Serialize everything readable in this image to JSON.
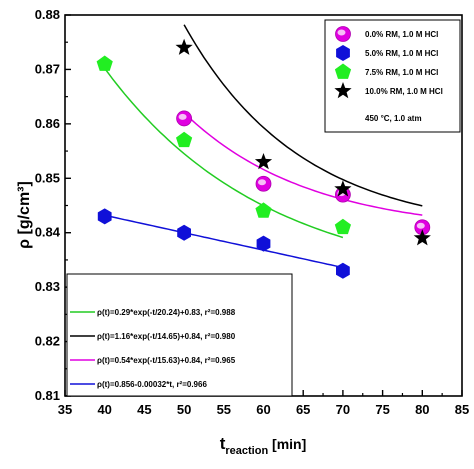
{
  "chart_data": {
    "type": "scatter",
    "xlabel": "t",
    "xlabel_sub": "reaction",
    "xlabel_unit": " [min]",
    "ylabel": "ρ [g/cm³]",
    "xlim": [
      35,
      85
    ],
    "ylim": [
      0.81,
      0.88
    ],
    "xticks": [
      35,
      40,
      45,
      50,
      55,
      60,
      65,
      70,
      75,
      80,
      85
    ],
    "yticks": [
      0.81,
      0.82,
      0.83,
      0.84,
      0.85,
      0.86,
      0.87,
      0.88
    ],
    "grid": false,
    "series": [
      {
        "name": "0.0% RM, 1.0 M HCl",
        "marker": "sphere",
        "color": "#e000e0",
        "x": [
          50,
          60,
          70,
          80
        ],
        "y": [
          0.861,
          0.849,
          0.847,
          0.841
        ]
      },
      {
        "name": "5.0% RM, 1.0 M HCl",
        "marker": "hexagon",
        "color": "#1010d8",
        "x": [
          40,
          50,
          60,
          70
        ],
        "y": [
          0.843,
          0.84,
          0.838,
          0.833
        ]
      },
      {
        "name": "7.5% RM, 1.0 M HCl",
        "marker": "pentagon",
        "color": "#22ee22",
        "x": [
          40,
          50,
          60,
          70
        ],
        "y": [
          0.871,
          0.857,
          0.844,
          0.841
        ]
      },
      {
        "name": "10.0% RM, 1.0 M HCl",
        "marker": "star",
        "color": "#000000",
        "x": [
          50,
          60,
          70,
          80
        ],
        "y": [
          0.874,
          0.853,
          0.848,
          0.839
        ]
      }
    ],
    "legend_note": "450 °C, 1.0 atm",
    "legend_placement": "top-right",
    "fits": [
      {
        "label": "ρ(t)=0.29*exp(-t/20.24)+0.83, r²=0.988",
        "color": "#22cc22",
        "kind": "exp",
        "A": 0.29,
        "tau": 20.24,
        "c": 0.83,
        "range": [
          40,
          70
        ]
      },
      {
        "label": "ρ(t)=1.16*exp(-t/14.65)+0.84, r²=0.980",
        "color": "#000000",
        "kind": "exp",
        "A": 1.16,
        "tau": 14.65,
        "c": 0.84,
        "range": [
          50,
          80
        ]
      },
      {
        "label": "ρ(t)=0.54*exp(-t/15.63)+0.84, r²=0.965",
        "color": "#e000e0",
        "kind": "exp",
        "A": 0.54,
        "tau": 15.63,
        "c": 0.84,
        "range": [
          50,
          80
        ]
      },
      {
        "label": "ρ(t)=0.856-0.00032*t, r²=0.966",
        "color": "#1010d8",
        "kind": "linear",
        "a": 0.856,
        "b": -0.00032,
        "range": [
          40,
          70
        ]
      }
    ],
    "fit_legend_placement": "bottom-left"
  }
}
